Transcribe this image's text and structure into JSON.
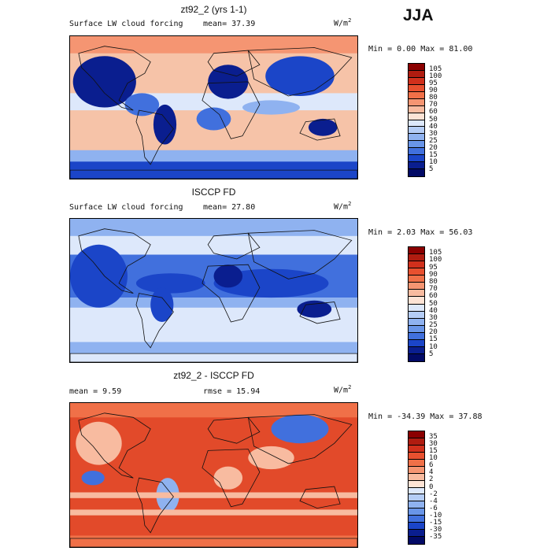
{
  "season": "JJA",
  "panels": [
    {
      "id": "model",
      "title": "zt92_2 (yrs 1-1)",
      "left_label": "Surface LW cloud forcing",
      "mean_text": "mean=  37.39",
      "rmse_text": "",
      "units_base": "W/m",
      "units_exp": "2",
      "minmax": "Min =   0.00 Max =  81.00",
      "levels": [
        "105",
        "100",
        "95",
        "90",
        "80",
        "70",
        "60",
        "50",
        "40",
        "30",
        "25",
        "20",
        "15",
        "10",
        "5"
      ],
      "colors": [
        "#8b0000",
        "#b01c10",
        "#d1301c",
        "#e8502f",
        "#f07048",
        "#f59572",
        "#f8bba0",
        "#fde3d5",
        "#dde8fb",
        "#b5cdf6",
        "#8fb2f0",
        "#6995e8",
        "#4170dd",
        "#1b45c8",
        "#0a1e8f",
        "#020a66"
      ],
      "map_base": "#f6c3a8",
      "map_colors": {
        "deep": "#0a1e8f",
        "strong": "#1b45c8",
        "mid": "#4170dd",
        "light": "#8fb2f0",
        "pale": "#dde8fb",
        "warm": "#f59572",
        "hot": "#e8502f"
      }
    },
    {
      "id": "obs",
      "title": "ISCCP FD",
      "left_label": "Surface LW cloud forcing",
      "mean_text": "mean=  27.80",
      "rmse_text": "",
      "units_base": "W/m",
      "units_exp": "2",
      "minmax": "Min =   2.03 Max =  56.03",
      "levels": [
        "105",
        "100",
        "95",
        "90",
        "80",
        "70",
        "60",
        "50",
        "40",
        "30",
        "25",
        "20",
        "15",
        "10",
        "5"
      ],
      "colors": [
        "#8b0000",
        "#b01c10",
        "#d1301c",
        "#e8502f",
        "#f07048",
        "#f59572",
        "#f8bba0",
        "#fde3d5",
        "#dde8fb",
        "#b5cdf6",
        "#8fb2f0",
        "#6995e8",
        "#4170dd",
        "#1b45c8",
        "#0a1e8f",
        "#020a66"
      ],
      "map_base": "#dde8fb",
      "map_colors": {
        "deep": "#0a1e8f",
        "strong": "#1b45c8",
        "mid": "#4170dd",
        "light": "#8fb2f0",
        "pale": "#b5cdf6",
        "warm": "#8fb2f0",
        "hot": "#4170dd"
      }
    },
    {
      "id": "diff",
      "title": "zt92_2 - ISCCP FD",
      "left_label": "mean =   9.59",
      "mean_text": "",
      "rmse_text": "rmse =  15.94",
      "units_base": "W/m",
      "units_exp": "2",
      "minmax": "Min = -34.39 Max =  37.88",
      "levels": [
        "35",
        "30",
        "15",
        "10",
        "6",
        "4",
        "2",
        "0",
        "-2",
        "-4",
        "-6",
        "-10",
        "-15",
        "-30",
        "-35"
      ],
      "colors": [
        "#8b0000",
        "#b01c10",
        "#d1301c",
        "#e8502f",
        "#f07048",
        "#f59572",
        "#f8bba0",
        "#fde3d5",
        "#dde8fb",
        "#b5cdf6",
        "#8fb2f0",
        "#6995e8",
        "#4170dd",
        "#1b45c8",
        "#0a1e8f",
        "#020a66"
      ],
      "map_base": "#e24a2a",
      "map_colors": {
        "deep": "#0a1e8f",
        "strong": "#1b45c8",
        "mid": "#4170dd",
        "light": "#8fb2f0",
        "pale": "#f8bba0",
        "warm": "#f07048",
        "hot": "#d1301c"
      }
    }
  ]
}
